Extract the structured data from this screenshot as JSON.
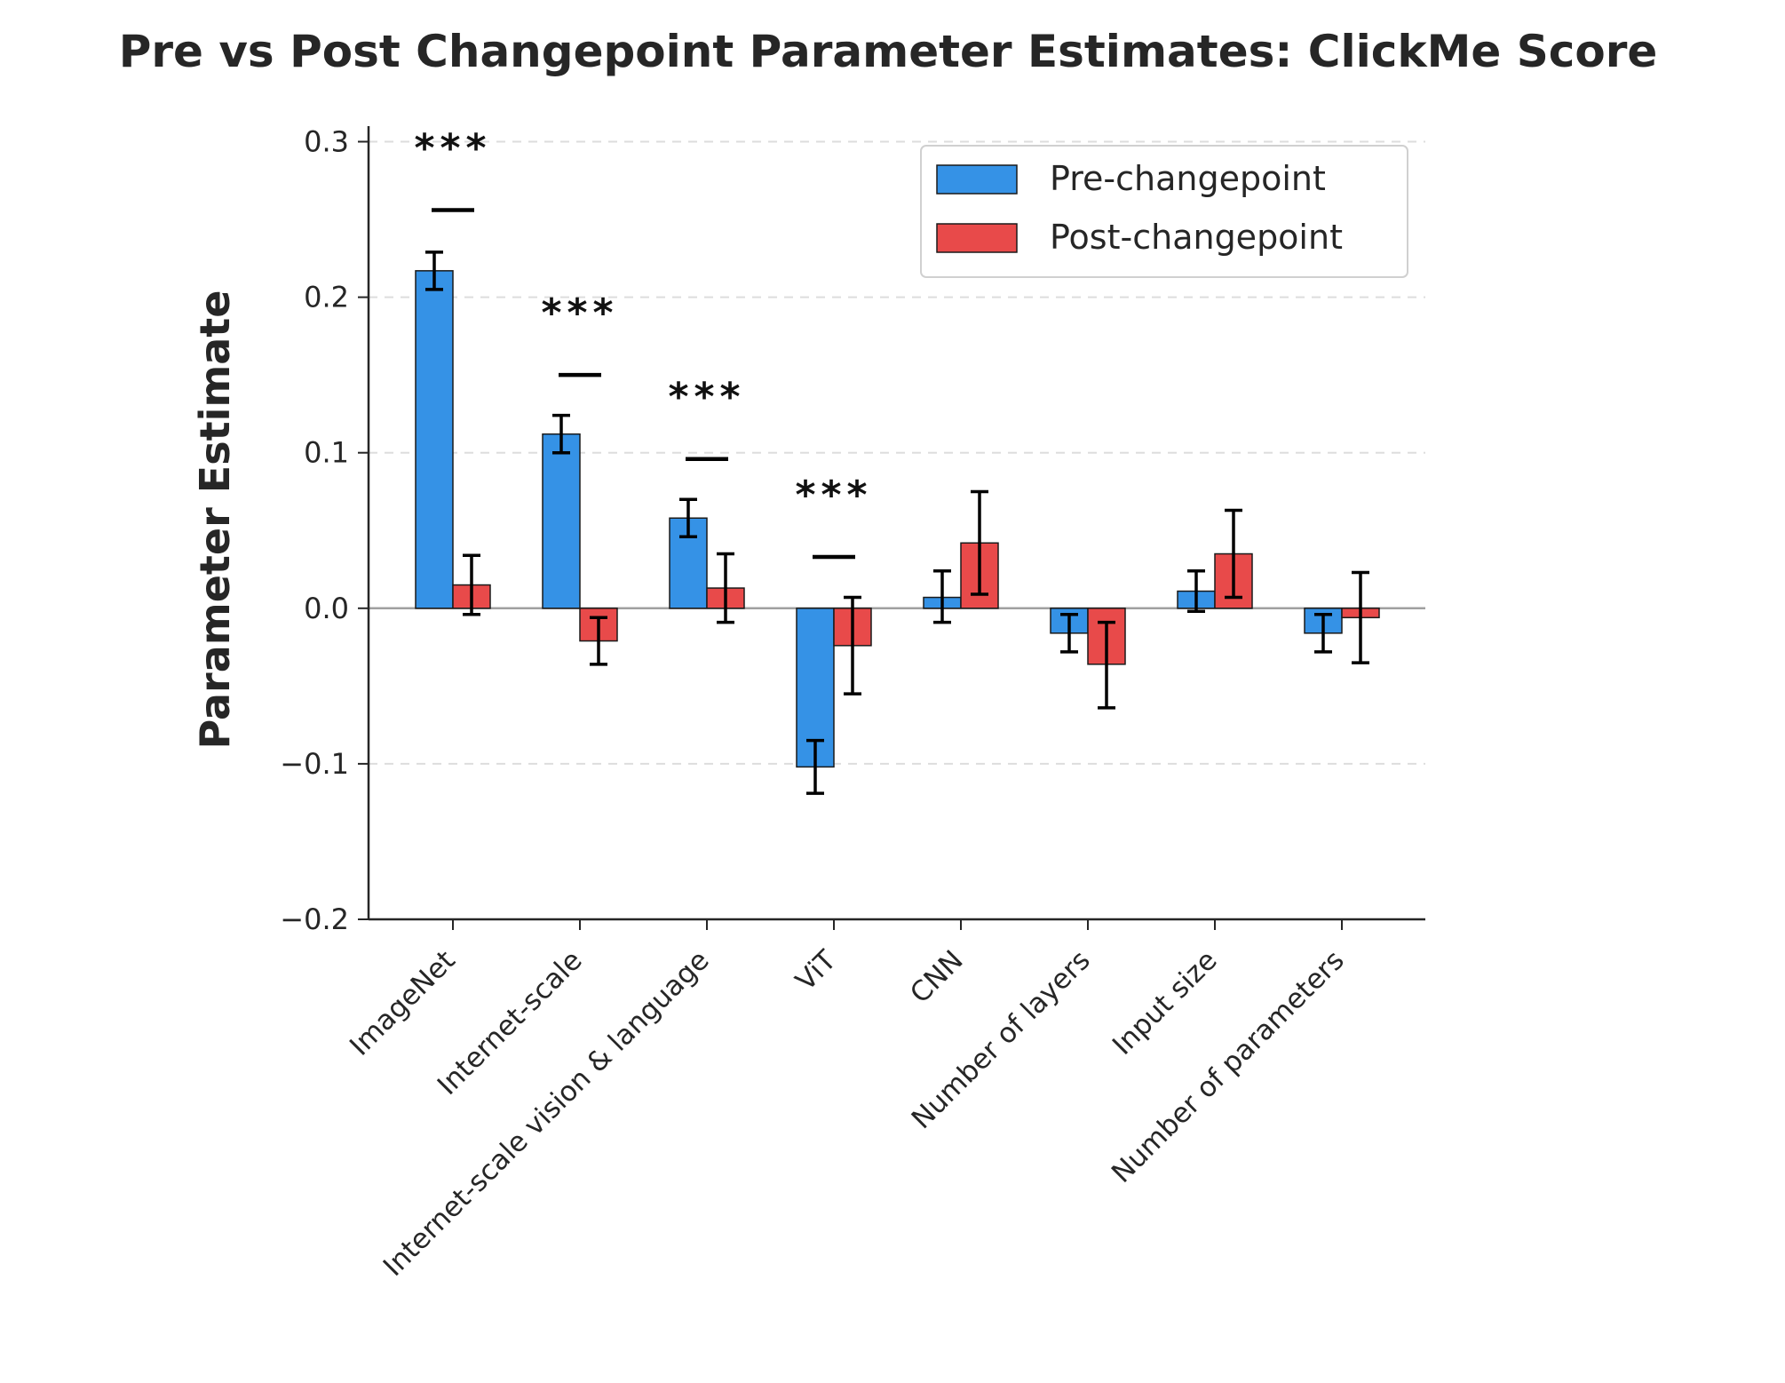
{
  "chart_data": {
    "type": "bar",
    "title": "Pre vs Post Changepoint Parameter Estimates: ClickMe Score",
    "xlabel": "",
    "ylabel": "Parameter Estimate",
    "ylim": [
      -0.2,
      0.31
    ],
    "yticks": [
      -0.2,
      -0.1,
      0.0,
      0.1,
      0.2,
      0.3
    ],
    "ytick_labels": [
      "−0.2",
      "−0.1",
      "0.0",
      "0.1",
      "0.2",
      "0.3"
    ],
    "grid": "horizontal dashed",
    "legend_position": "top-right",
    "categories": [
      "ImageNet",
      "Internet-scale",
      "Internet-scale vision & language",
      "ViT",
      "CNN",
      "Number of layers",
      "Input size",
      "Number of parameters"
    ],
    "series": [
      {
        "name": "Pre-changepoint",
        "color": "#3592e6",
        "values": [
          0.217,
          0.112,
          0.058,
          -0.102,
          0.007,
          -0.016,
          0.011,
          -0.016
        ],
        "err_low": [
          0.205,
          0.1,
          0.046,
          -0.119,
          -0.009,
          -0.028,
          -0.002,
          -0.028
        ],
        "err_high": [
          0.229,
          0.124,
          0.07,
          -0.085,
          0.024,
          -0.004,
          0.024,
          -0.004
        ]
      },
      {
        "name": "Post-changepoint",
        "color": "#e84a4a",
        "values": [
          0.015,
          -0.021,
          0.013,
          -0.024,
          0.042,
          -0.036,
          0.035,
          -0.006
        ],
        "err_low": [
          -0.004,
          -0.036,
          -0.009,
          -0.055,
          0.009,
          -0.064,
          0.007,
          -0.035
        ],
        "err_high": [
          0.034,
          -0.006,
          0.035,
          0.007,
          0.075,
          -0.009,
          0.063,
          0.023
        ]
      }
    ],
    "significance": [
      {
        "category": "ImageNet",
        "label": "***",
        "bracket_y": 0.256
      },
      {
        "category": "Internet-scale",
        "label": "***",
        "bracket_y": 0.15
      },
      {
        "category": "Internet-scale vision & language",
        "label": "***",
        "bracket_y": 0.096
      },
      {
        "category": "ViT",
        "label": "***",
        "bracket_y": 0.033
      }
    ]
  }
}
